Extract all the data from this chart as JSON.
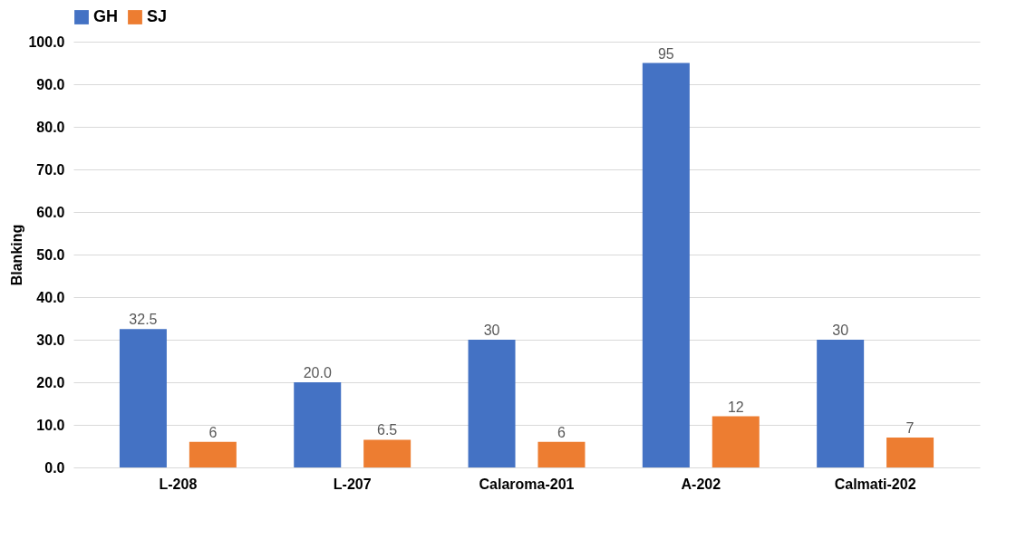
{
  "chart_data": {
    "type": "bar",
    "ylabel": "Blanking",
    "categories": [
      "L-208",
      "L-207",
      "Calaroma-201",
      "A-202",
      "Calmati-202"
    ],
    "series": [
      {
        "name": "GH",
        "color": "#4472c4",
        "values": [
          32.5,
          20,
          30,
          95,
          30
        ],
        "value_labels": [
          "32.5",
          "20.0",
          "30",
          "95",
          "30"
        ]
      },
      {
        "name": "SJ",
        "color": "#ed7d31",
        "values": [
          6,
          6.5,
          6,
          12,
          7
        ],
        "value_labels": [
          "6",
          "6.5",
          "6",
          "12",
          "7"
        ]
      }
    ],
    "ylim": [
      0,
      100
    ],
    "yticks": [
      {
        "value": 0,
        "label": "0.0"
      },
      {
        "value": 10,
        "label": "10.0"
      },
      {
        "value": 20,
        "label": "20.0"
      },
      {
        "value": 30,
        "label": "30.0"
      },
      {
        "value": 40,
        "label": "40.0"
      },
      {
        "value": 50,
        "label": "50.0"
      },
      {
        "value": 60,
        "label": "60.0"
      },
      {
        "value": 70,
        "label": "70.0"
      },
      {
        "value": 80,
        "label": "80.0"
      },
      {
        "value": 90,
        "label": "90.0"
      },
      {
        "value": 100,
        "label": "100.0"
      }
    ],
    "grid": "y",
    "legend": "top"
  }
}
